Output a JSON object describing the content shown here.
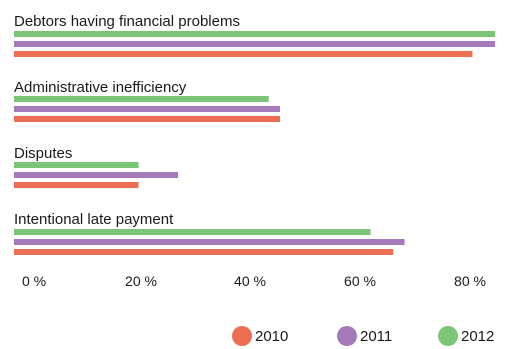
{
  "chart_data": {
    "type": "bar",
    "orientation": "horizontal",
    "categories": [
      "Debtors having financial problems",
      "Administrative inefficiency",
      "Disputes",
      "Intentional late payment"
    ],
    "series": [
      {
        "name": "2012",
        "color": "#7cc576",
        "values": [
          85,
          45,
          22,
          63
        ]
      },
      {
        "name": "2011",
        "color": "#a47bb8",
        "values": [
          85,
          47,
          29,
          69
        ]
      },
      {
        "name": "2010",
        "color": "#ec6f54",
        "values": [
          81,
          47,
          22,
          67
        ]
      }
    ],
    "x_ticks": [
      "0 %",
      "20 %",
      "40 %",
      "60 %",
      "80 %"
    ],
    "xlim": [
      0,
      90
    ],
    "grid": false,
    "legend_position": "bottom-right",
    "legend": [
      {
        "label": "2010",
        "color": "#ec6f54"
      },
      {
        "label": "2011",
        "color": "#a47bb8"
      },
      {
        "label": "2012",
        "color": "#7cc576"
      }
    ]
  }
}
